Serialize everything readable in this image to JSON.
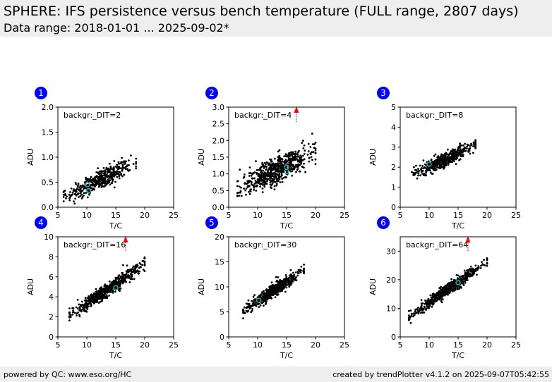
{
  "header": {
    "title": "SPHERE: IFS persistence versus bench temperature (FULL range, 2807 days)",
    "subtitle": "Data range: 2018-01-01 ... 2025-09-02*"
  },
  "footer": {
    "left": "powered by QC: www.eso.org/HC",
    "right": "created by trendPlotter v4.1.2 on 2025-09-07T05:42:55"
  },
  "colors": {
    "points": "#000000",
    "reference": "#20b2aa",
    "marker": "#0000ff",
    "arrow": "#ff0000",
    "header_bg": "#eeeeee"
  },
  "chart_data": [
    {
      "type": "scatter",
      "panel": "1",
      "label": "backgr:_DIT=2",
      "xlabel": "T/C",
      "ylabel": "ADU",
      "xlim": [
        5,
        25
      ],
      "ylim": [
        0,
        2.0
      ],
      "xticks": [
        "5",
        "10",
        "15",
        "20",
        "25"
      ],
      "yticks": [
        "0.0",
        "0.5",
        "1.0",
        "1.5",
        "2.0"
      ],
      "cloud": {
        "x_range": [
          6,
          18.5
        ],
        "slope": 0.055,
        "y_at_10": 0.42,
        "scatter": 0.1,
        "count": 420
      },
      "reference_points": [
        {
          "x": 10.1,
          "y": 0.45
        },
        {
          "x": 10.3,
          "y": 0.33
        }
      ],
      "arrow": null
    },
    {
      "type": "scatter",
      "panel": "2",
      "label": "backgr:_DIT=4",
      "xlabel": "T/C",
      "ylabel": "ADU",
      "xlim": [
        5,
        25
      ],
      "ylim": [
        0,
        3.0
      ],
      "xticks": [
        "5",
        "10",
        "15",
        "20",
        "25"
      ],
      "yticks": [
        "0.0",
        "0.5",
        "1.0",
        "1.5",
        "2.0",
        "2.5",
        "3.0"
      ],
      "cloud": {
        "x_range": [
          6.5,
          20
        ],
        "slope": 0.08,
        "y_at_10": 0.85,
        "scatter": 0.2,
        "count": 650
      },
      "reference_points": [
        {
          "x": 15.0,
          "y": 1.2
        },
        {
          "x": 15.0,
          "y": 1.07
        }
      ],
      "arrow": {
        "x": 16.7,
        "from": 2.55,
        "to": 3.0
      }
    },
    {
      "type": "scatter",
      "panel": "3",
      "label": "backgr:_DIT=8",
      "xlabel": "T/C",
      "ylabel": "ADU",
      "xlim": [
        5,
        25
      ],
      "ylim": [
        0,
        5
      ],
      "xticks": [
        "5",
        "10",
        "15",
        "20",
        "25"
      ],
      "yticks": [
        "0",
        "1",
        "2",
        "3",
        "4",
        "5"
      ],
      "cloud": {
        "x_range": [
          7,
          18
        ],
        "slope": 0.14,
        "y_at_10": 2.0,
        "scatter": 0.17,
        "count": 500
      },
      "reference_points": [
        {
          "x": 10.0,
          "y": 2.15
        }
      ],
      "arrow": null
    },
    {
      "type": "scatter",
      "panel": "4",
      "label": "backgr:_DIT=16",
      "xlabel": "T/C",
      "ylabel": "ADU",
      "xlim": [
        5,
        25
      ],
      "ylim": [
        0,
        10
      ],
      "xticks": [
        "5",
        "10",
        "15",
        "20",
        "25"
      ],
      "yticks": [
        "0",
        "2",
        "4",
        "6",
        "8",
        "10"
      ],
      "cloud": {
        "x_range": [
          7,
          20
        ],
        "slope": 0.4,
        "y_at_10": 3.3,
        "scatter": 0.35,
        "count": 600
      },
      "reference_points": [
        {
          "x": 15.0,
          "y": 4.9
        }
      ],
      "arrow": {
        "x": 16.7,
        "from": 8.6,
        "to": 10.0
      }
    },
    {
      "type": "scatter",
      "panel": "5",
      "label": "backgr:_DIT=30",
      "xlabel": "T/C",
      "ylabel": "ADU",
      "xlim": [
        5,
        25
      ],
      "ylim": [
        0,
        20
      ],
      "xticks": [
        "5",
        "10",
        "15",
        "20",
        "25"
      ],
      "yticks": [
        "0",
        "5",
        "10",
        "15",
        "20"
      ],
      "cloud": {
        "x_range": [
          7.5,
          18
        ],
        "slope": 0.75,
        "y_at_10": 7.2,
        "scatter": 0.6,
        "count": 550
      },
      "reference_points": [
        {
          "x": 10.2,
          "y": 7.3
        }
      ],
      "arrow": null
    },
    {
      "type": "scatter",
      "panel": "6",
      "label": "backgr:_DIT=64",
      "xlabel": "T/C",
      "ylabel": "ADU",
      "xlim": [
        5,
        25
      ],
      "ylim": [
        0,
        35
      ],
      "xticks": [
        "5",
        "10",
        "15",
        "20",
        "25"
      ],
      "yticks": [
        "0",
        "10",
        "20",
        "30"
      ],
      "cloud": {
        "x_range": [
          6.5,
          20
        ],
        "slope": 1.45,
        "y_at_10": 12.0,
        "scatter": 1.0,
        "count": 600
      },
      "reference_points": [
        {
          "x": 15.0,
          "y": 19.0
        }
      ],
      "arrow": {
        "x": 16.7,
        "from": 30.0,
        "to": 35.0
      }
    }
  ]
}
